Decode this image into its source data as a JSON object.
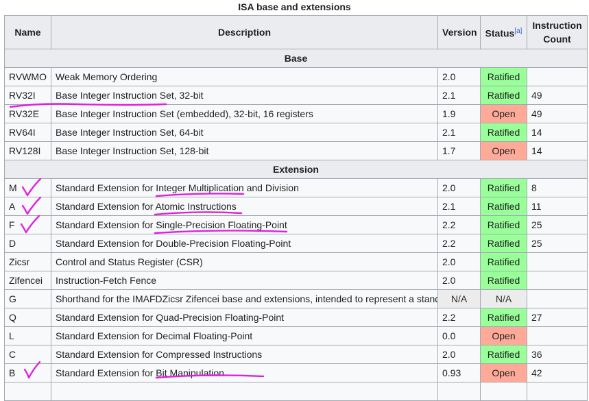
{
  "caption": "ISA base and extensions",
  "headers": {
    "name": "Name",
    "description": "Description",
    "version": "Version",
    "status": "Status",
    "status_ref": "[a]",
    "count_line1": "Instruction",
    "count_line2": "Count"
  },
  "sections": [
    {
      "title": "Base",
      "rows": [
        {
          "name": "RVWMO",
          "description": "Weak Memory Ordering",
          "version": "2.0",
          "status": "Ratified",
          "status_kind": "ratified",
          "count": ""
        },
        {
          "name": "RV32I",
          "description": "Base Integer Instruction Set, 32-bit",
          "version": "2.1",
          "status": "Ratified",
          "status_kind": "ratified",
          "count": "49"
        },
        {
          "name": "RV32E",
          "description": "Base Integer Instruction Set (embedded), 32-bit, 16 registers",
          "version": "1.9",
          "status": "Open",
          "status_kind": "open",
          "count": "49"
        },
        {
          "name": "RV64I",
          "description": "Base Integer Instruction Set, 64-bit",
          "version": "2.1",
          "status": "Ratified",
          "status_kind": "ratified",
          "count": "14"
        },
        {
          "name": "RV128I",
          "description": "Base Integer Instruction Set, 128-bit",
          "version": "1.7",
          "status": "Open",
          "status_kind": "open",
          "count": "14"
        }
      ]
    },
    {
      "title": "Extension",
      "rows": [
        {
          "name": "M",
          "description": "Standard Extension for Integer Multiplication and Division",
          "version": "2.0",
          "status": "Ratified",
          "status_kind": "ratified",
          "count": "8"
        },
        {
          "name": "A",
          "description": "Standard Extension for Atomic Instructions",
          "version": "2.1",
          "status": "Ratified",
          "status_kind": "ratified",
          "count": "11"
        },
        {
          "name": "F",
          "description": "Standard Extension for Single-Precision Floating-Point",
          "version": "2.2",
          "status": "Ratified",
          "status_kind": "ratified",
          "count": "25"
        },
        {
          "name": "D",
          "description": "Standard Extension for Double-Precision Floating-Point",
          "version": "2.2",
          "status": "Ratified",
          "status_kind": "ratified",
          "count": "25"
        },
        {
          "name": "Zicsr",
          "description": "Control and Status Register (CSR)",
          "version": "2.0",
          "status": "Ratified",
          "status_kind": "ratified",
          "count": ""
        },
        {
          "name": "Zifencei",
          "description": "Instruction-Fetch Fence",
          "version": "2.0",
          "status": "Ratified",
          "status_kind": "ratified",
          "count": ""
        },
        {
          "name": "G",
          "description": "Shorthand for the IMAFDZicsr Zifencei base and extensions, intended to represent a standard general-purpose ISA",
          "version": "N/A",
          "status": "N/A",
          "status_kind": "na",
          "count": ""
        },
        {
          "name": "Q",
          "description": "Standard Extension for Quad-Precision Floating-Point",
          "version": "2.2",
          "status": "Ratified",
          "status_kind": "ratified",
          "count": "27"
        },
        {
          "name": "L",
          "description": "Standard Extension for Decimal Floating-Point",
          "version": "0.0",
          "status": "Open",
          "status_kind": "open",
          "count": ""
        },
        {
          "name": "C",
          "description": "Standard Extension for Compressed Instructions",
          "version": "2.0",
          "status": "Ratified",
          "status_kind": "ratified",
          "count": "36"
        },
        {
          "name": "B",
          "description": "Standard Extension for Bit Manipulation",
          "version": "0.93",
          "status": "Open",
          "status_kind": "open",
          "count": "42"
        },
        {
          "name": "",
          "description": "",
          "version": "",
          "status": "",
          "status_kind": "",
          "count": ""
        }
      ]
    }
  ],
  "annotations": {
    "color": "#e020e0",
    "marks": [
      "underline",
      "checkmark"
    ]
  }
}
